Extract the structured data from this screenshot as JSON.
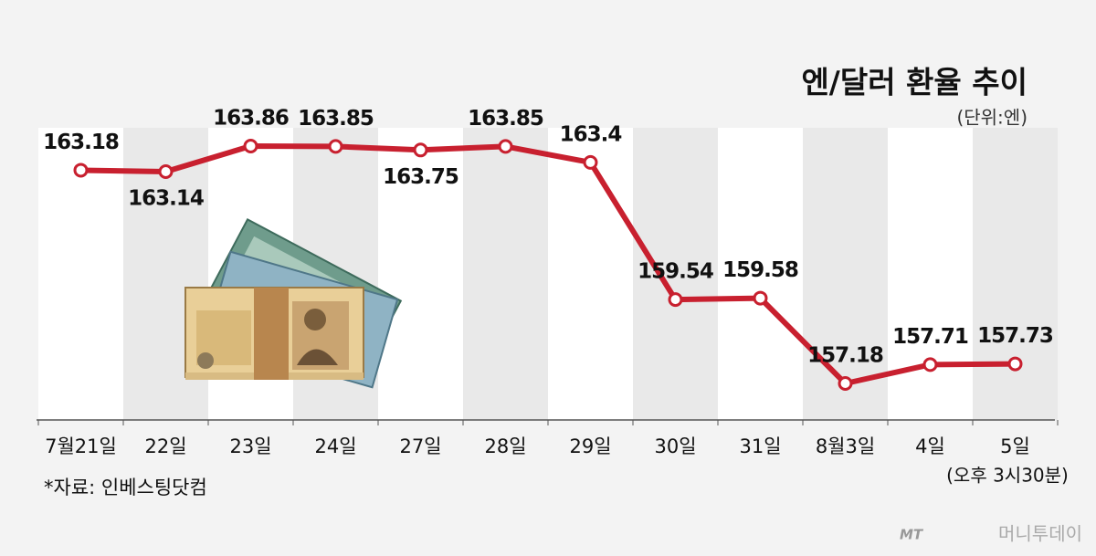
{
  "chart_data": {
    "type": "line",
    "title": "엔/달러 환율 추이",
    "subtitle": "(단위:엔)",
    "categories": [
      "7월21일",
      "22일",
      "23일",
      "24일",
      "27일",
      "28일",
      "29일",
      "30일",
      "31일",
      "8월3일",
      "4일",
      "5일"
    ],
    "series": [
      {
        "name": "엔/달러 환율",
        "color": "#c8202f",
        "values": [
          163.18,
          163.14,
          163.86,
          163.85,
          163.75,
          163.85,
          163.4,
          159.54,
          159.58,
          157.18,
          157.71,
          157.73
        ]
      }
    ],
    "annotation": "(오후 3시30분)",
    "source": "*자료: 인베스팅닷컴",
    "logo": "MT",
    "watermark": "머니투데이"
  }
}
